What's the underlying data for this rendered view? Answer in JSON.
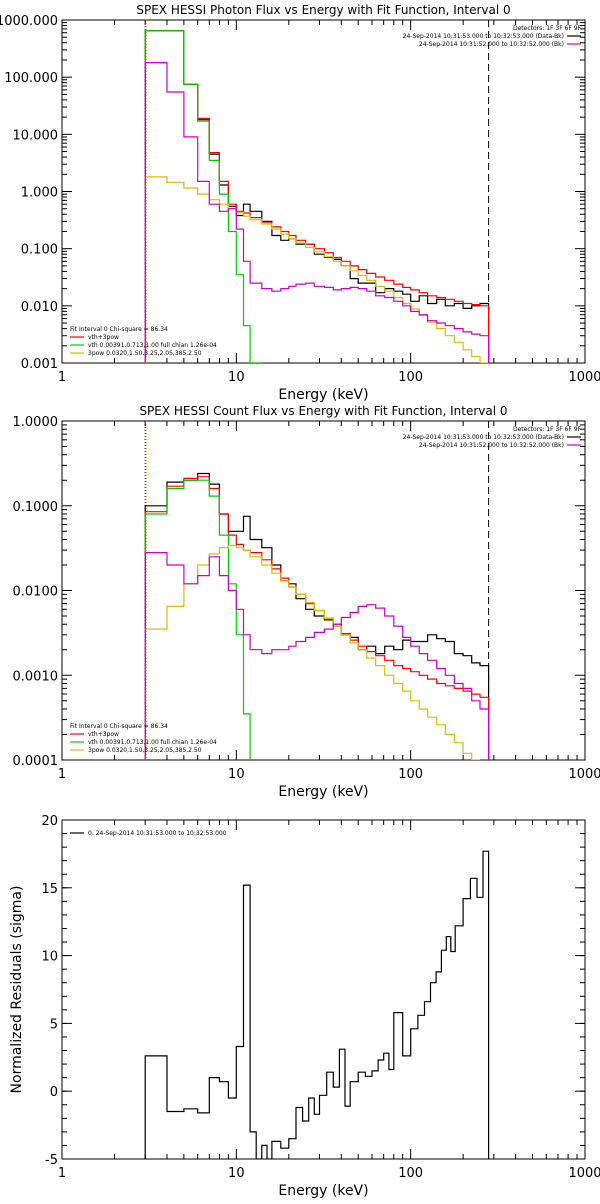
{
  "chart_data": [
    {
      "type": "line",
      "title": "SPEX HESSI Photon Flux vs Energy with Fit Function, Interval 0",
      "xlabel": "Energy (keV)",
      "ylabel": "",
      "xscale": "log",
      "yscale": "log",
      "xlim": [
        1,
        1000
      ],
      "ylim": [
        0.001,
        1000
      ],
      "x_ticks": [
        1,
        10,
        100,
        1000
      ],
      "x_tick_labels": [
        "1",
        "10",
        "100",
        "1000"
      ],
      "y_ticks": [
        0.001,
        0.01,
        0.1,
        1,
        10,
        100,
        1000
      ],
      "y_tick_labels": [
        "0.001",
        "0.010",
        "0.100",
        "1.000",
        "10.000",
        "100.000",
        "1000.000"
      ],
      "vlines": [
        {
          "x": 3,
          "style": "dotted",
          "color": "#000000"
        },
        {
          "x": 3,
          "style": "dotted",
          "color": "#ff8c00"
        },
        {
          "x": 280,
          "style": "dashed",
          "color": "#000000"
        }
      ],
      "legend_right": {
        "placement": "top-right",
        "header": "Detectors: 1F 3F 6F 9F",
        "entries": [
          {
            "label": "24-Sep-2014 10:31:53.000 to 10:32:53.000 (Data-Bk)",
            "color": "#000000"
          },
          {
            "label": "24-Sep-2014 10:31:52.000 to 10:32:52.000 (Bk)",
            "color": "#cc00cc"
          }
        ]
      },
      "legend_left": {
        "placement": "bottom-left",
        "header": "Fit Interval 0   Chi-square = 86.34",
        "entries": [
          {
            "label": "vth+3pow",
            "color": "#ff0000"
          },
          {
            "label": "vth 0.00391,0.713,1.00  full chian 1.26e-04",
            "color": "#00cc00"
          },
          {
            "label": "3pow 0.0320,1.50,3.25,2.05,385,2.50",
            "color": "#ddbb00"
          }
        ]
      },
      "series": [
        {
          "color": "#000000",
          "edges": [
            3,
            4,
            5,
            6,
            7,
            8,
            9,
            10,
            11,
            12,
            14,
            16,
            18,
            20,
            22,
            25,
            28,
            32,
            36,
            40,
            45,
            50,
            56,
            63,
            71,
            80,
            90,
            100,
            112,
            125,
            141,
            158,
            178,
            200,
            224,
            250,
            280
          ],
          "values": [
            650,
            650,
            75,
            18,
            4.5,
            1.3,
            0.55,
            0.38,
            0.6,
            0.45,
            0.3,
            0.17,
            0.14,
            0.15,
            0.12,
            0.12,
            0.08,
            0.07,
            0.065,
            0.05,
            0.03,
            0.025,
            0.025,
            0.017,
            0.02,
            0.018,
            0.016,
            0.012,
            0.015,
            0.011,
            0.013,
            0.01,
            0.011,
            0.009,
            0.01,
            0.011
          ]
        },
        {
          "color": "#ff0000",
          "edges": [
            3,
            4,
            5,
            6,
            7,
            8,
            9,
            10,
            11,
            12,
            14,
            16,
            18,
            20,
            22,
            25,
            28,
            32,
            36,
            40,
            45,
            50,
            56,
            63,
            71,
            80,
            90,
            100,
            112,
            125,
            141,
            158,
            178,
            200,
            224,
            250,
            280
          ],
          "values": [
            650,
            650,
            75,
            19,
            4.8,
            1.5,
            0.6,
            0.45,
            0.42,
            0.35,
            0.29,
            0.24,
            0.2,
            0.17,
            0.14,
            0.12,
            0.1,
            0.085,
            0.07,
            0.06,
            0.05,
            0.043,
            0.037,
            0.032,
            0.028,
            0.024,
            0.021,
            0.019,
            0.017,
            0.015,
            0.014,
            0.013,
            0.012,
            0.011,
            0.0105,
            0.01
          ]
        },
        {
          "color": "#00cc00",
          "edges": [
            3,
            4,
            5,
            6,
            7,
            8,
            9,
            10,
            11,
            12,
            14
          ],
          "values": [
            650,
            650,
            75,
            17,
            3.5,
            0.9,
            0.2,
            0.035,
            0.0045,
            0.001
          ]
        },
        {
          "color": "#ddbb00",
          "edges": [
            3,
            4,
            5,
            6,
            7,
            8,
            9,
            10,
            11,
            12,
            14,
            16,
            18,
            20,
            22,
            25,
            28,
            32,
            36,
            40,
            45,
            50,
            56,
            63,
            71,
            80,
            90,
            100,
            112,
            125,
            141,
            158,
            178,
            200,
            224,
            250,
            280
          ],
          "values": [
            1.8,
            1.45,
            1.15,
            0.9,
            0.72,
            0.6,
            0.5,
            0.43,
            0.37,
            0.32,
            0.27,
            0.22,
            0.18,
            0.15,
            0.125,
            0.105,
            0.088,
            0.072,
            0.06,
            0.05,
            0.041,
            0.034,
            0.028,
            0.022,
            0.018,
            0.014,
            0.011,
            0.0088,
            0.0068,
            0.0052,
            0.004,
            0.003,
            0.0023,
            0.0017,
            0.0013,
            0.00095
          ]
        },
        {
          "color": "#cc00cc",
          "edges": [
            3,
            4,
            5,
            6,
            7,
            8,
            9,
            10,
            11,
            12,
            14,
            16,
            18,
            20,
            22,
            25,
            28,
            32,
            36,
            40,
            45,
            50,
            56,
            63,
            71,
            80,
            90,
            100,
            112,
            125,
            141,
            158,
            178,
            200,
            224,
            250,
            280
          ],
          "values": [
            180,
            55,
            9,
            1.5,
            0.6,
            0.45,
            0.5,
            0.22,
            0.06,
            0.025,
            0.02,
            0.018,
            0.02,
            0.022,
            0.024,
            0.025,
            0.022,
            0.021,
            0.019,
            0.02,
            0.021,
            0.02,
            0.018,
            0.015,
            0.014,
            0.012,
            0.01,
            0.008,
            0.007,
            0.0055,
            0.005,
            0.0045,
            0.004,
            0.0035,
            0.0032,
            0.003
          ]
        }
      ]
    },
    {
      "type": "line",
      "title": "SPEX HESSI Count Flux vs Energy with Fit Function, Interval 0",
      "xlabel": "Energy (keV)",
      "ylabel": "",
      "xscale": "log",
      "yscale": "log",
      "xlim": [
        1,
        1000
      ],
      "ylim": [
        0.0001,
        1
      ],
      "x_ticks": [
        1,
        10,
        100,
        1000
      ],
      "x_tick_labels": [
        "1",
        "10",
        "100",
        "1000"
      ],
      "y_ticks": [
        0.0001,
        0.001,
        0.01,
        0.1,
        1
      ],
      "y_tick_labels": [
        "0.0001",
        "0.0010",
        "0.0100",
        "0.1000",
        "1.0000"
      ],
      "vlines": [
        {
          "x": 3,
          "style": "dotted",
          "color": "#000000"
        },
        {
          "x": 3,
          "style": "dotted",
          "color": "#ff8c00"
        },
        {
          "x": 280,
          "style": "dashed",
          "color": "#000000"
        }
      ],
      "legend_right": {
        "placement": "top-right",
        "header": "Detectors: 1F 3F 6F 9F",
        "entries": [
          {
            "label": "24-Sep-2014 10:31:53.000 to 10:32:53.000 (Data-Bk)",
            "color": "#000000"
          },
          {
            "label": "24-Sep-2014 10:31:52.000 to 10:32:52.000 (Bk)",
            "color": "#cc00cc"
          }
        ]
      },
      "legend_left": {
        "placement": "bottom-left",
        "header": "Fit Interval 0   Chi-square = 86.34",
        "entries": [
          {
            "label": "vth+3pow",
            "color": "#ff0000"
          },
          {
            "label": "vth 0.00391,0.713,1.00  full chian 1.26e-04",
            "color": "#00cc00"
          },
          {
            "label": "3pow 0.0320,1.50,3.25,2.05,385,2.50",
            "color": "#ddbb00"
          }
        ]
      },
      "series": [
        {
          "color": "#000000",
          "edges": [
            3,
            4,
            5,
            6,
            7,
            8,
            9,
            10,
            11,
            12,
            14,
            16,
            18,
            20,
            22,
            25,
            28,
            32,
            36,
            40,
            45,
            50,
            56,
            63,
            71,
            80,
            90,
            100,
            112,
            125,
            141,
            158,
            178,
            200,
            224,
            250,
            280
          ],
          "values": [
            0.1,
            0.19,
            0.2,
            0.24,
            0.18,
            0.08,
            0.05,
            0.05,
            0.075,
            0.04,
            0.032,
            0.02,
            0.013,
            0.012,
            0.008,
            0.006,
            0.005,
            0.0045,
            0.004,
            0.003,
            0.0028,
            0.002,
            0.0022,
            0.0018,
            0.0022,
            0.002,
            0.0026,
            0.0025,
            0.0025,
            0.003,
            0.0027,
            0.0025,
            0.0018,
            0.0017,
            0.0014,
            0.0013
          ]
        },
        {
          "color": "#ff0000",
          "edges": [
            3,
            4,
            5,
            6,
            7,
            8,
            9,
            10,
            11,
            12,
            14,
            16,
            18,
            20,
            22,
            25,
            28,
            32,
            36,
            40,
            45,
            50,
            56,
            63,
            71,
            80,
            90,
            100,
            112,
            125,
            141,
            158,
            178,
            200,
            224,
            250,
            280
          ],
          "values": [
            0.085,
            0.17,
            0.21,
            0.22,
            0.16,
            0.08,
            0.045,
            0.035,
            0.03,
            0.028,
            0.023,
            0.018,
            0.014,
            0.011,
            0.009,
            0.007,
            0.0058,
            0.0047,
            0.0038,
            0.0031,
            0.0026,
            0.0022,
            0.0019,
            0.0017,
            0.0015,
            0.0013,
            0.0012,
            0.0011,
            0.001,
            0.0009,
            0.0008,
            0.00075,
            0.0007,
            0.00065,
            0.0006,
            0.00055
          ]
        },
        {
          "color": "#00cc00",
          "edges": [
            3,
            4,
            5,
            6,
            7,
            8,
            9,
            10,
            11,
            12
          ],
          "values": [
            0.08,
            0.16,
            0.2,
            0.2,
            0.13,
            0.045,
            0.012,
            0.003,
            0.00035
          ]
        },
        {
          "color": "#ddbb00",
          "edges": [
            3,
            4,
            5,
            6,
            7,
            8,
            9,
            10,
            11,
            12,
            14,
            16,
            18,
            20,
            22,
            25,
            28,
            32,
            36,
            40,
            45,
            50,
            56,
            63,
            71,
            80,
            90,
            100,
            112,
            125,
            141,
            158,
            178,
            200,
            224,
            250
          ],
          "values": [
            0.0035,
            0.0065,
            0.012,
            0.02,
            0.027,
            0.032,
            0.034,
            0.032,
            0.03,
            0.025,
            0.02,
            0.016,
            0.013,
            0.011,
            0.009,
            0.0072,
            0.0058,
            0.0047,
            0.0038,
            0.003,
            0.0024,
            0.002,
            0.0016,
            0.0013,
            0.001,
            0.0008,
            0.00065,
            0.0005,
            0.0004,
            0.00032,
            0.00026,
            0.0002,
            0.00016,
            0.00012,
            0.0001
          ]
        },
        {
          "color": "#cc00cc",
          "edges": [
            3,
            4,
            5,
            6,
            7,
            8,
            9,
            10,
            11,
            12,
            14,
            16,
            18,
            20,
            22,
            25,
            28,
            32,
            36,
            40,
            45,
            50,
            56,
            63,
            71,
            80,
            90,
            100,
            112,
            125,
            141,
            158,
            178,
            200,
            224,
            250,
            280
          ],
          "values": [
            0.028,
            0.02,
            0.012,
            0.015,
            0.025,
            0.015,
            0.01,
            0.006,
            0.003,
            0.002,
            0.0018,
            0.002,
            0.002,
            0.0022,
            0.0025,
            0.0028,
            0.0032,
            0.0035,
            0.004,
            0.0048,
            0.0055,
            0.0065,
            0.0068,
            0.0062,
            0.005,
            0.0038,
            0.0028,
            0.0022,
            0.0018,
            0.0015,
            0.0012,
            0.001,
            0.0008,
            0.0007,
            0.0005,
            0.0004
          ]
        }
      ]
    },
    {
      "type": "line",
      "title": "",
      "xlabel": "Energy (keV)",
      "ylabel": "Normalized Residuals (sigma)",
      "xscale": "log",
      "yscale": "linear",
      "xlim": [
        1,
        1000
      ],
      "ylim": [
        -5,
        20
      ],
      "x_ticks": [
        1,
        10,
        100,
        1000
      ],
      "x_tick_labels": [
        "1",
        "10",
        "100",
        "1000"
      ],
      "y_ticks": [
        -5,
        0,
        5,
        10,
        15,
        20
      ],
      "y_tick_labels": [
        "-5",
        "0",
        "5",
        "10",
        "15",
        "20"
      ],
      "vlines": [],
      "legend_right": null,
      "legend_left": {
        "placement": "top-left",
        "header": "",
        "entries": [
          {
            "label": "0. 24-Sep-2014 10:31:53.000 to 10:32:53.000",
            "color": "#000000"
          }
        ]
      },
      "series": [
        {
          "color": "#000000",
          "edges": [
            3,
            4,
            5,
            6,
            7,
            8,
            9,
            10,
            11,
            12,
            13,
            14,
            15,
            16,
            18,
            20,
            22,
            24,
            26,
            28,
            30,
            33,
            36,
            39,
            42,
            45,
            50,
            55,
            60,
            65,
            70,
            75,
            80,
            90,
            100,
            110,
            120,
            130,
            140,
            150,
            160,
            170,
            180,
            200,
            220,
            240,
            260,
            280
          ],
          "values": [
            2.6,
            -1.5,
            -1.3,
            -1.6,
            1,
            0.7,
            -0.5,
            3.3,
            15.2,
            -3,
            -5,
            -4,
            -5.2,
            -3.7,
            -4.2,
            -3.5,
            -1.2,
            -2.2,
            -0.5,
            -1.7,
            -0.3,
            1.4,
            0.3,
            3.1,
            -1.1,
            0.7,
            1.4,
            1.1,
            1.5,
            2.3,
            2.8,
            1.6,
            5.8,
            2.6,
            4.6,
            5.6,
            6.6,
            8,
            8.8,
            10.4,
            11.4,
            10.3,
            12.2,
            14.2,
            15.7,
            14.3,
            17.7
          ]
        }
      ]
    }
  ]
}
